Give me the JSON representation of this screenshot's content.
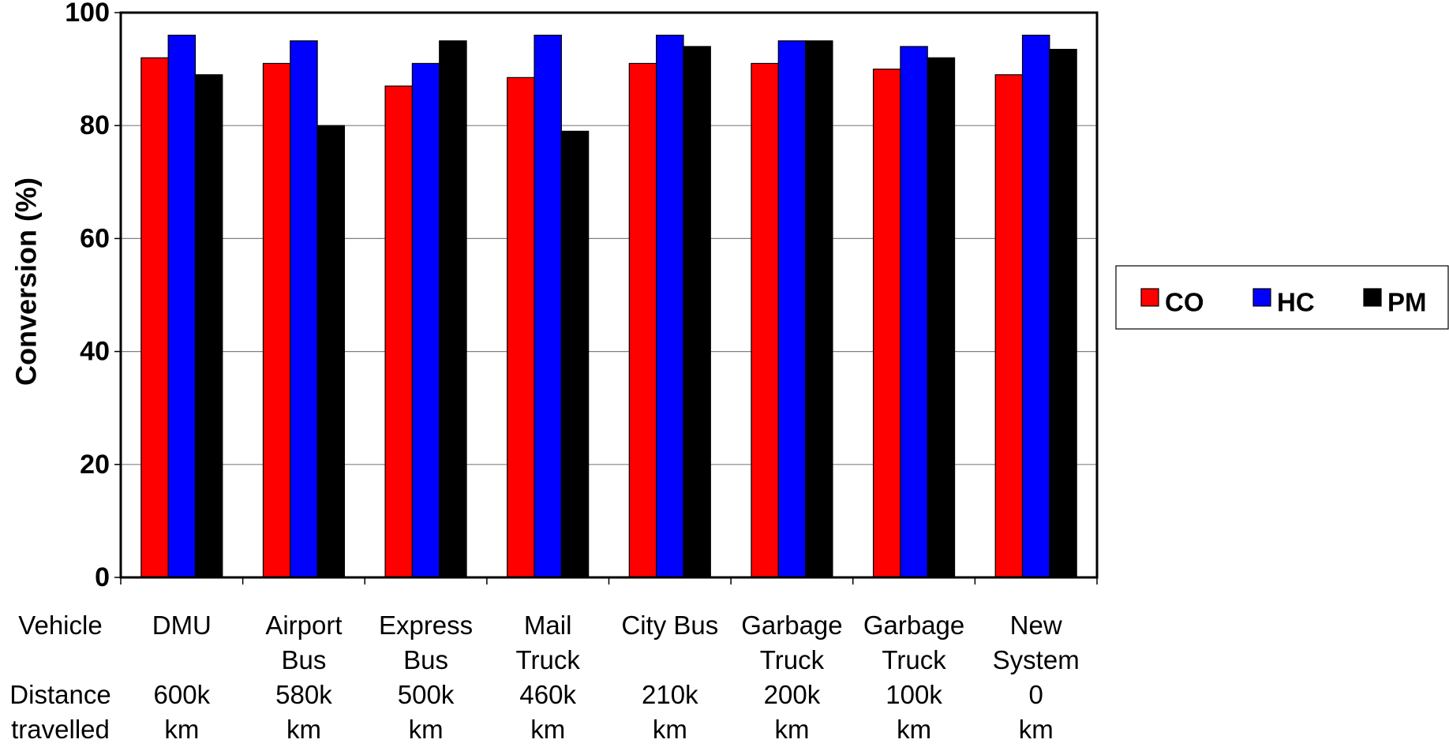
{
  "chart_data": {
    "type": "bar",
    "y_axis_label": "Conversion (%)",
    "row_labels": [
      "Vehicle",
      "Distance\ntravelled"
    ],
    "categories": [
      "DMU",
      "Airport\nBus",
      "Express\nBus",
      "Mail\nTruck",
      "City Bus",
      "Garbage\nTruck",
      "Garbage\nTruck",
      "New\nSystem"
    ],
    "distances": [
      "600k\nkm",
      "580k\nkm",
      "500k\nkm",
      "460k\nkm",
      "210k\nkm",
      "200k\nkm",
      "100k\nkm",
      "0\nkm"
    ],
    "series": [
      {
        "name": "CO",
        "color": "#ff0000",
        "values": [
          92,
          91,
          87,
          88.5,
          91,
          91,
          90,
          89
        ]
      },
      {
        "name": "HC",
        "color": "#0000ff",
        "values": [
          96,
          95,
          91,
          96,
          96,
          95,
          94,
          96
        ]
      },
      {
        "name": "PM",
        "color": "#000000",
        "values": [
          89,
          80,
          95,
          79,
          94,
          95,
          92,
          93.5
        ]
      }
    ],
    "ylim": [
      0,
      100
    ],
    "yticks": [
      0,
      20,
      40,
      60,
      80,
      100
    ],
    "grid": true,
    "legend": "right"
  }
}
